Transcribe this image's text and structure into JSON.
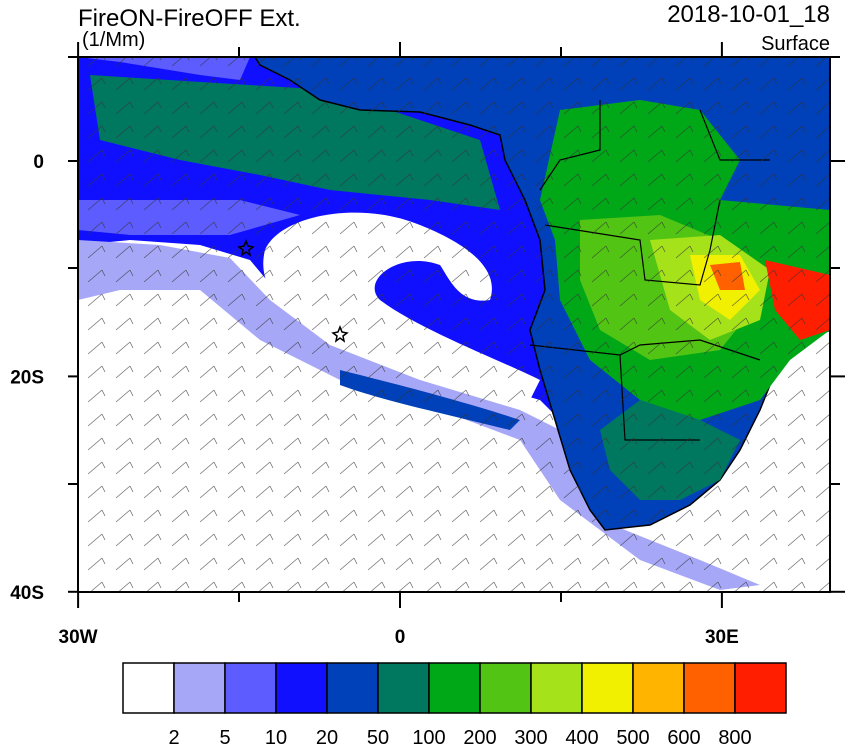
{
  "header": {
    "title": "FireON-FireOFF Ext.",
    "units": "(1/Mm)",
    "date": "2018-10-01_18",
    "level": "Surface"
  },
  "map": {
    "lat_ticks": [
      {
        "value": 0,
        "label": "0"
      },
      {
        "value": -20,
        "label": "20S"
      },
      {
        "value": -40,
        "label": "40S"
      }
    ],
    "lon_ticks": [
      {
        "value": -30,
        "label": "30W"
      },
      {
        "value": 0,
        "label": "0"
      },
      {
        "value": 30,
        "label": "30E"
      }
    ]
  },
  "colorbar": {
    "levels": [
      2,
      5,
      10,
      20,
      50,
      100,
      200,
      300,
      400,
      500,
      600,
      800
    ],
    "colors": [
      "#ffffff",
      "#a7a7f7",
      "#5c5cff",
      "#1010ff",
      "#0040b8",
      "#007860",
      "#00a818",
      "#52c414",
      "#a6e21a",
      "#f0f000",
      "#ffb400",
      "#ff6000",
      "#ff1e00"
    ]
  }
}
